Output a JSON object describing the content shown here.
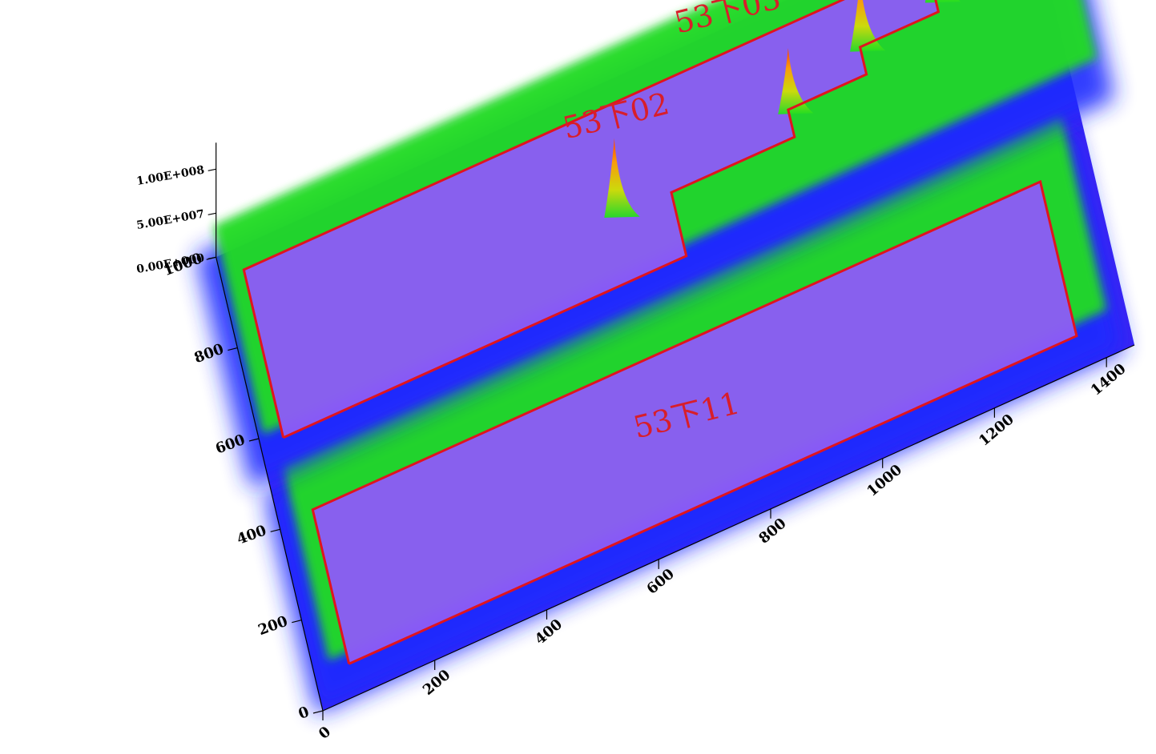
{
  "chart_data": {
    "type": "surface3d",
    "title": "",
    "x_axis": {
      "label": "",
      "ticks": [
        "0",
        "200",
        "400",
        "600",
        "800",
        "1000",
        "1200",
        "1400"
      ],
      "range": [
        0,
        1450
      ]
    },
    "y_axis": {
      "label": "",
      "ticks": [
        "0",
        "200",
        "400",
        "600",
        "800",
        "1000"
      ],
      "range": [
        0,
        1000
      ]
    },
    "z_axis": {
      "label": "",
      "ticks": [
        "0.00E+000",
        "5.00E+007",
        "1.00E+008"
      ],
      "range": [
        0,
        100000000
      ]
    },
    "colormap": [
      "#3a1cf0",
      "#1f2bff",
      "#22dd22",
      "#cfe000",
      "#ff9f00",
      "#ff3b00"
    ],
    "surface_color": "#3a24f2",
    "zone_fill": "#8b5cf5",
    "outline_color": "#e0141e",
    "label_color": "#d81e2a",
    "zones": [
      {
        "name": "53下11",
        "outline": [
          [
            60,
            70
          ],
          [
            1360,
            70
          ],
          [
            1360,
            410
          ],
          [
            60,
            410
          ],
          [
            60,
            70
          ]
        ],
        "peaks": []
      },
      {
        "name": "53下02",
        "outline": [
          [
            40,
            580
          ],
          [
            760,
            580
          ],
          [
            760,
            720
          ],
          [
            980,
            720
          ],
          [
            980,
            780
          ],
          [
            1120,
            780
          ],
          [
            1120,
            840
          ],
          [
            1260,
            840
          ],
          [
            1260,
            870
          ],
          [
            1440,
            870
          ],
          [
            1440,
            950
          ],
          [
            40,
            950
          ],
          [
            40,
            580
          ]
        ],
        "peaks": [
          {
            "x": 660,
            "y": 730,
            "z": 85000000
          },
          {
            "x": 980,
            "y": 780,
            "z": 70000000
          },
          {
            "x": 1120,
            "y": 840,
            "z": 78000000
          },
          {
            "x": 1260,
            "y": 870,
            "z": 98000000
          }
        ]
      },
      {
        "name": "53下03",
        "outline": [],
        "peaks": []
      }
    ]
  }
}
